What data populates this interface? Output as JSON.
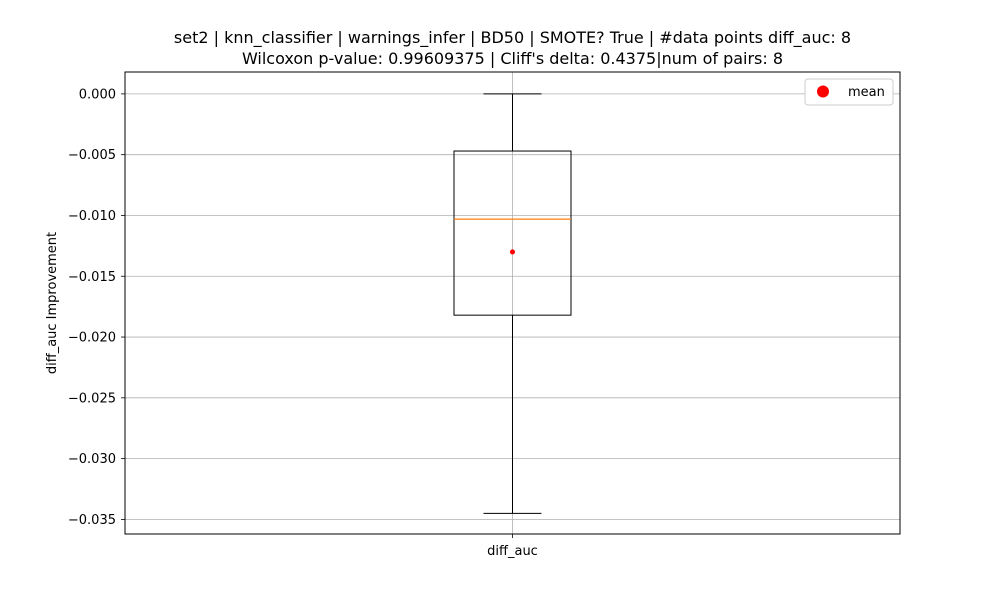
{
  "chart_data": {
    "type": "box",
    "title": "set2 | knn_classifier | warnings_infer | BD50 | SMOTE? True | #data points diff_auc: 8",
    "subtitle": "Wilcoxon p-value: 0.99609375 | Cliff's delta: 0.4375|num of pairs: 8",
    "xlabel": "",
    "ylabel": "diff_auc Improvement",
    "categories": [
      "diff_auc"
    ],
    "ylim": [
      -0.0362,
      0.0018
    ],
    "yticks": [
      0.0,
      -0.005,
      -0.01,
      -0.015,
      -0.02,
      -0.025,
      -0.03,
      -0.035
    ],
    "ytick_labels": [
      "0.000",
      "−0.005",
      "−0.010",
      "−0.015",
      "−0.020",
      "−0.025",
      "−0.030",
      "−0.035"
    ],
    "grid": true,
    "series": [
      {
        "whisker_low": -0.0345,
        "q1": -0.0182,
        "median": -0.0103,
        "q3": -0.0047,
        "whisker_high": 0.0,
        "mean": -0.013
      }
    ],
    "legend": {
      "position": "top-right",
      "entries": [
        {
          "label": "mean",
          "color": "#ff0000"
        }
      ]
    },
    "colors": {
      "median": "#ff7f0e",
      "mean": "#ff0000",
      "box": "#000000",
      "grid": "#b0b0b0"
    }
  }
}
